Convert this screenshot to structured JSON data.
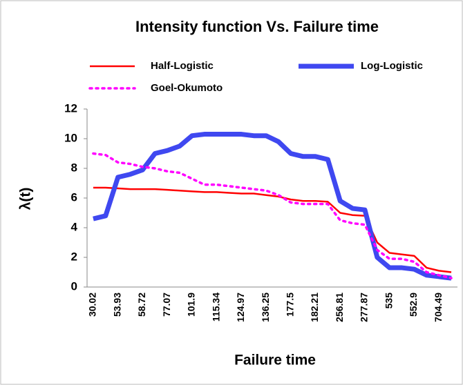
{
  "chart_data": {
    "type": "line",
    "title": "Intensity function  Vs. Failure time",
    "x_label": "Failure time",
    "y_label": "λ(t)",
    "categories": [
      "30.02",
      null,
      "53.93",
      null,
      "58.72",
      null,
      "77.07",
      null,
      "101.9",
      null,
      "115.34",
      null,
      "124.97",
      null,
      "136.25",
      null,
      "177.5",
      null,
      "182.21",
      null,
      "256.81",
      null,
      "277.87",
      null,
      "535",
      null,
      "552.9",
      null,
      "704.49",
      null
    ],
    "series": [
      {
        "name": "Half-Logistic",
        "color": "#ff0000",
        "values": [
          6.7,
          6.7,
          6.65,
          6.6,
          6.6,
          6.6,
          6.55,
          6.5,
          6.45,
          6.4,
          6.4,
          6.35,
          6.3,
          6.3,
          6.2,
          6.1,
          5.9,
          5.8,
          5.8,
          5.75,
          5.0,
          4.85,
          4.8,
          3.0,
          2.3,
          2.2,
          2.1,
          1.3,
          1.1,
          1.0
        ]
      },
      {
        "name": "Log-Logistic",
        "color": "#3f48f0",
        "values": [
          4.6,
          4.8,
          7.4,
          7.6,
          7.9,
          9.0,
          9.2,
          9.5,
          10.2,
          10.3,
          10.3,
          10.3,
          10.3,
          10.2,
          10.2,
          9.8,
          9.0,
          8.8,
          8.8,
          8.6,
          5.8,
          5.3,
          5.2,
          2.0,
          1.3,
          1.3,
          1.2,
          0.8,
          0.7,
          0.6
        ]
      },
      {
        "name": "Goel-Okumoto",
        "color": "#ff00ff",
        "values": [
          9.0,
          8.9,
          8.4,
          8.3,
          8.1,
          8.0,
          7.8,
          7.7,
          7.3,
          6.9,
          6.9,
          6.8,
          6.7,
          6.6,
          6.5,
          6.2,
          5.7,
          5.6,
          5.6,
          5.6,
          4.5,
          4.3,
          4.2,
          2.5,
          1.9,
          1.9,
          1.7,
          1.0,
          0.8,
          0.6
        ]
      }
    ],
    "ylim": [
      0,
      12
    ],
    "yticks": [
      0,
      2,
      4,
      6,
      8,
      10,
      12
    ],
    "grid": false
  }
}
